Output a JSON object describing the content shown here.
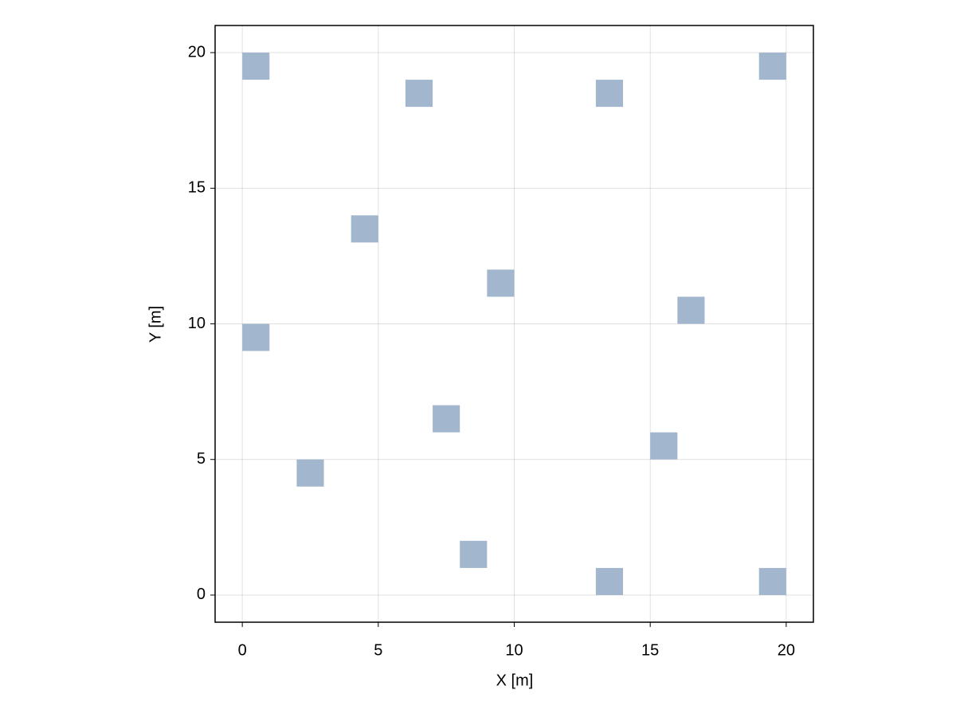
{
  "chart_data": {
    "type": "scatter",
    "x_label": "X [m]",
    "y_label": "Y [m]",
    "x": [
      0.5,
      6.5,
      13.5,
      19.5,
      4.5,
      9.5,
      16.5,
      0.5,
      7.5,
      15.5,
      2.5,
      8.5,
      13.5,
      19.5
    ],
    "values": [
      19.5,
      18.5,
      18.5,
      19.5,
      13.5,
      11.5,
      10.5,
      9.5,
      6.5,
      5.5,
      4.5,
      1.5,
      0.5,
      0.5
    ],
    "color": "#a2b6cd",
    "xlim": [
      -1,
      21
    ],
    "ylim": [
      -1,
      21
    ],
    "xticks": [
      0,
      5,
      10,
      15,
      20
    ],
    "yticks": [
      0,
      5,
      10,
      15,
      20
    ],
    "grid": true
  }
}
